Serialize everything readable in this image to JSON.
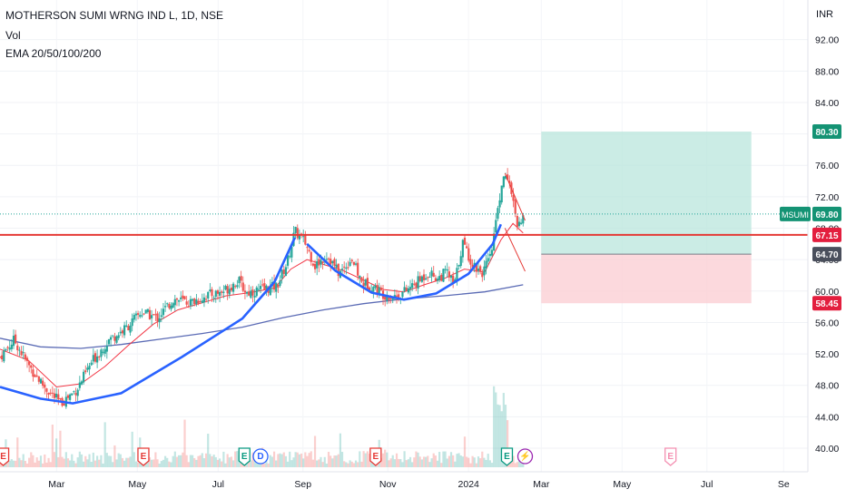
{
  "header": {
    "symbol_line": "MOTHERSON SUMI WRNG IND L, 1D, NSE",
    "volume_label": "Vol",
    "ema_label": "EMA 20/50/100/200"
  },
  "currency": "INR",
  "colors": {
    "up": "#26a69a",
    "down": "#ef5350",
    "cup_curve": "#2962ff",
    "ema_slow": "#5b6bb5",
    "ema_fast": "#f23645",
    "resistance": "#e53935",
    "profit_zone": "#b9e6dc",
    "loss_zone": "#fbd0d5",
    "entry_badge": "#4a4f5c",
    "target_badge": "#149374",
    "stop_badge": "#e31e3e"
  },
  "chart_data": {
    "type": "candlestick",
    "title": "MOTHERSON SUMI WRNG IND L, 1D, NSE",
    "ylim": [
      38,
      96
    ],
    "y_ticks": [
      40,
      44,
      48,
      52,
      56,
      60,
      64,
      68,
      72,
      76,
      80,
      84,
      88,
      92
    ],
    "y_tick_labels": [
      "40.00",
      "44.00",
      "48.00",
      "52.00",
      "56.00",
      "60.00",
      "64.00",
      "68.00",
      "72.00",
      "76.00",
      "80.00",
      "84.00",
      "88.00",
      "92.00"
    ],
    "x_labels": [
      "Mar",
      "May",
      "Jul",
      "Sep",
      "Nov",
      "2024",
      "Mar",
      "May",
      "Jul",
      "Se"
    ],
    "x_label_index": [
      1.4,
      3.4,
      5.4,
      7.5,
      9.6,
      11.6,
      13.4,
      15.4,
      17.5,
      19.4
    ],
    "last_bar_index": 12.95,
    "future_end_index": 19.7,
    "price_path": [
      [
        0.0,
        51.6
      ],
      [
        0.35,
        53.8
      ],
      [
        0.7,
        50.6
      ],
      [
        1.1,
        47.8
      ],
      [
        1.5,
        45.7
      ],
      [
        1.9,
        47.5
      ],
      [
        2.3,
        51.2
      ],
      [
        2.7,
        53.8
      ],
      [
        3.1,
        55.2
      ],
      [
        3.5,
        57.3
      ],
      [
        3.9,
        56.6
      ],
      [
        4.3,
        59.0
      ],
      [
        4.7,
        58.5
      ],
      [
        5.1,
        59.4
      ],
      [
        5.5,
        59.9
      ],
      [
        5.9,
        61.3
      ],
      [
        6.1,
        59.8
      ],
      [
        6.5,
        60.2
      ],
      [
        6.85,
        60.6
      ],
      [
        7.1,
        63.5
      ],
      [
        7.3,
        67.6
      ],
      [
        7.55,
        66.2
      ],
      [
        7.8,
        63.2
      ],
      [
        8.1,
        64.6
      ],
      [
        8.4,
        62.2
      ],
      [
        8.7,
        64.2
      ],
      [
        8.95,
        61.1
      ],
      [
        9.2,
        60.7
      ],
      [
        9.5,
        59.6
      ],
      [
        9.8,
        59.3
      ],
      [
        10.1,
        60.2
      ],
      [
        10.35,
        61.2
      ],
      [
        10.6,
        62.4
      ],
      [
        10.85,
        61.6
      ],
      [
        11.05,
        62.5
      ],
      [
        11.25,
        60.7
      ],
      [
        11.45,
        66.2
      ],
      [
        11.7,
        63.4
      ],
      [
        11.95,
        62.4
      ],
      [
        12.15,
        64.3
      ],
      [
        12.35,
        71.5
      ],
      [
        12.5,
        74.6
      ],
      [
        12.65,
        73.2
      ],
      [
        12.8,
        67.6
      ],
      [
        12.95,
        69.8
      ]
    ],
    "series": [
      {
        "name": "Vol"
      },
      {
        "name": "EMA 20/50/100/200"
      }
    ],
    "ema_fast_path": [
      [
        0.0,
        52.6
      ],
      [
        0.7,
        51.2
      ],
      [
        1.4,
        47.8
      ],
      [
        2.0,
        48.2
      ],
      [
        2.6,
        50.4
      ],
      [
        3.2,
        53.2
      ],
      [
        3.8,
        55.8
      ],
      [
        4.4,
        57.6
      ],
      [
        5.0,
        58.5
      ],
      [
        5.6,
        59.4
      ],
      [
        6.2,
        59.8
      ],
      [
        6.8,
        60.4
      ],
      [
        7.2,
        62.8
      ],
      [
        7.6,
        64.0
      ],
      [
        8.0,
        63.4
      ],
      [
        8.5,
        62.6
      ],
      [
        9.0,
        61.4
      ],
      [
        9.5,
        60.2
      ],
      [
        10.0,
        59.9
      ],
      [
        10.5,
        60.8
      ],
      [
        11.0,
        61.6
      ],
      [
        11.5,
        62.8
      ],
      [
        12.0,
        62.4
      ],
      [
        12.4,
        66.5
      ],
      [
        12.7,
        68.6
      ],
      [
        12.95,
        67.4
      ]
    ],
    "ema_slow_path": [
      [
        0.0,
        54.0
      ],
      [
        1.0,
        52.9
      ],
      [
        2.0,
        52.7
      ],
      [
        3.0,
        53.2
      ],
      [
        4.0,
        53.9
      ],
      [
        5.0,
        54.6
      ],
      [
        6.0,
        55.4
      ],
      [
        7.0,
        56.6
      ],
      [
        8.0,
        57.6
      ],
      [
        9.0,
        58.4
      ],
      [
        10.0,
        59.0
      ],
      [
        11.0,
        59.4
      ],
      [
        12.0,
        59.9
      ],
      [
        12.95,
        60.8
      ]
    ],
    "cup_curve": [
      [
        0.0,
        47.8
      ],
      [
        1.0,
        46.3
      ],
      [
        1.8,
        45.7
      ],
      [
        3.0,
        47.0
      ],
      [
        4.5,
        51.6
      ],
      [
        6.0,
        56.5
      ],
      [
        6.8,
        61.2
      ],
      [
        7.3,
        66.8
      ]
    ],
    "cup_curve_2": [
      [
        7.6,
        66.0
      ],
      [
        8.3,
        62.6
      ],
      [
        9.2,
        59.8
      ],
      [
        10.0,
        58.9
      ],
      [
        10.8,
        59.7
      ],
      [
        11.6,
        62.2
      ],
      [
        12.2,
        66.0
      ],
      [
        12.4,
        68.5
      ]
    ],
    "triangle_upper": [
      [
        12.5,
        75.0
      ],
      [
        13.0,
        69.0
      ]
    ],
    "triangle_lower": [
      [
        12.5,
        68.0
      ],
      [
        13.0,
        62.5
      ]
    ],
    "resistance_level": 67.15,
    "last_price": 69.8,
    "position": {
      "start_index": 13.4,
      "end_index": 18.6,
      "target": 80.3,
      "entry": 64.7,
      "stop": 58.45
    },
    "price_badges": [
      {
        "label": "80.30",
        "value": 80.3,
        "color": "#149374"
      },
      {
        "label": "69.80",
        "value": 69.8,
        "color": "#149374",
        "symbol": "MSUMI"
      },
      {
        "label": "67.15",
        "value": 67.15,
        "color": "#e31e3e"
      },
      {
        "label": "64.70",
        "value": 64.7,
        "color": "#4a4f5c"
      },
      {
        "label": "58.45",
        "value": 58.45,
        "color": "#e31e3e"
      }
    ],
    "events": [
      {
        "label": "E",
        "index": 0.08,
        "color": "#e53935"
      },
      {
        "label": "E",
        "index": 3.55,
        "color": "#e53935"
      },
      {
        "label": "E",
        "index": 6.05,
        "color": "#089981"
      },
      {
        "label": "D",
        "index": 6.45,
        "color": "#2962ff"
      },
      {
        "label": "E",
        "index": 9.3,
        "color": "#e53935"
      },
      {
        "label": "E",
        "index": 12.55,
        "color": "#089981"
      },
      {
        "label": "⚡",
        "index": 13.0,
        "color": "#9c27b0"
      },
      {
        "label": "E",
        "index": 16.6,
        "color": "#f48fb1"
      }
    ]
  }
}
